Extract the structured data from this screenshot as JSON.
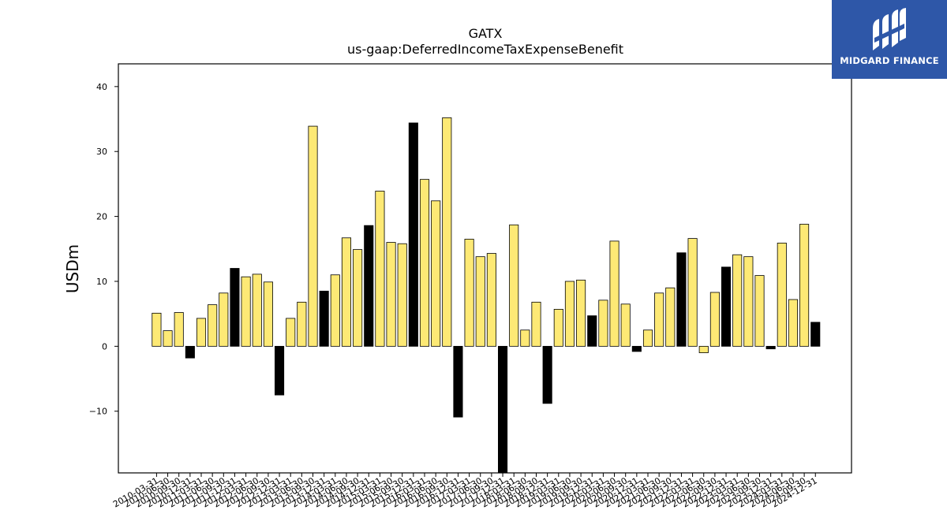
{
  "chart_data": {
    "type": "bar",
    "title": "GATX",
    "subtitle": "us-gaap:DeferredIncomeTaxExpenseBenefit",
    "ylabel": "USDm",
    "ylim": [
      -19.5,
      43.5
    ],
    "yticks": [
      -10,
      0,
      10,
      20,
      30,
      40
    ],
    "ytick_labels": [
      "−10",
      "0",
      "10",
      "20",
      "30",
      "40"
    ],
    "grid": false,
    "colors": {
      "quarter": "#fde975",
      "year_end": "#000000",
      "edge": "#000000"
    },
    "categories": [
      "2010-03-31",
      "2010-06-30",
      "2010-09-30",
      "2010-12-31",
      "2011-03-31",
      "2011-06-30",
      "2011-09-30",
      "2011-12-31",
      "2012-03-31",
      "2012-06-30",
      "2012-09-30",
      "2012-12-31",
      "2013-03-31",
      "2013-06-30",
      "2013-09-30",
      "2013-12-31",
      "2014-03-31",
      "2014-06-30",
      "2014-09-30",
      "2014-12-31",
      "2015-03-31",
      "2015-06-30",
      "2015-09-30",
      "2015-12-31",
      "2016-03-31",
      "2016-06-30",
      "2016-09-30",
      "2016-12-31",
      "2017-03-31",
      "2017-06-30",
      "2017-09-30",
      "2017-12-31",
      "2018-03-31",
      "2018-06-30",
      "2018-09-30",
      "2018-12-31",
      "2019-03-31",
      "2019-06-30",
      "2019-09-30",
      "2019-12-31",
      "2020-03-31",
      "2020-06-30",
      "2020-09-30",
      "2020-12-31",
      "2021-03-31",
      "2021-06-30",
      "2021-09-30",
      "2021-12-31",
      "2022-03-31",
      "2022-06-30",
      "2022-09-30",
      "2022-12-31",
      "2023-03-31",
      "2023-06-30",
      "2023-09-30",
      "2023-12-31",
      "2024-03-31",
      "2024-06-30",
      "2024-09-30",
      "2024-12-31"
    ],
    "values": [
      5.1,
      2.4,
      5.2,
      -1.8,
      4.3,
      6.4,
      8.2,
      12.0,
      10.7,
      11.1,
      9.9,
      -7.5,
      4.3,
      6.8,
      33.9,
      8.5,
      11.0,
      16.7,
      14.9,
      18.6,
      23.9,
      16.0,
      15.8,
      34.4,
      25.7,
      22.4,
      35.2,
      -10.9,
      16.5,
      13.8,
      14.3,
      -19.5,
      18.7,
      2.5,
      6.8,
      -8.8,
      5.7,
      10.0,
      10.2,
      4.7,
      7.1,
      16.2,
      6.5,
      -0.8,
      2.5,
      8.2,
      9.0,
      14.4,
      16.6,
      -1.0,
      8.3,
      12.2,
      14.1,
      13.8,
      10.9,
      -0.4,
      15.9,
      7.2,
      18.8,
      3.7
    ]
  },
  "logo": {
    "name": "MIDGARD FINANCE",
    "icon": "midgard-logo-icon"
  }
}
